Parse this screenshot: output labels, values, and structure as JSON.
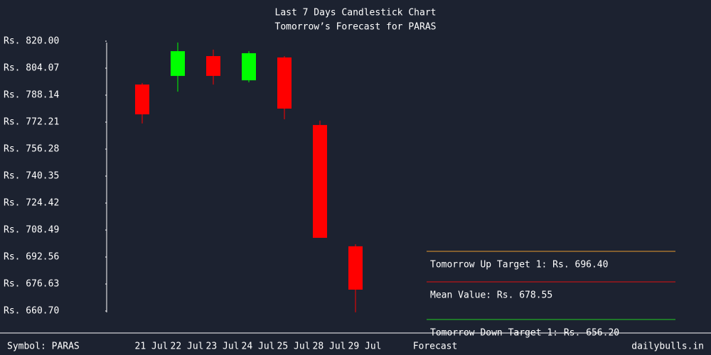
{
  "chart_data": {
    "type": "candlestick",
    "title": "Last 7 Days Candlestick Chart",
    "subtitle": "Tomorrow’s Forecast for PARAS",
    "categories": [
      "21 Jul",
      "22 Jul",
      "23 Jul",
      "24 Jul",
      "25 Jul",
      "28 Jul",
      "29 Jul"
    ],
    "open": [
      794.4,
      799.5,
      811.2,
      796.9,
      810.4,
      770.5,
      698.9
    ],
    "high": [
      795.3,
      819.2,
      815.0,
      814.1,
      811.2,
      773.1,
      700.1
    ],
    "low": [
      771.4,
      790.2,
      794.4,
      795.7,
      773.9,
      703.9,
      659.9
    ],
    "close": [
      776.8,
      814.1,
      799.5,
      812.9,
      780.2,
      703.9,
      673.3
    ],
    "up_color": "#00ff00",
    "down_color": "#ff0000",
    "ylim": [
      660.7,
      820.0
    ],
    "yticks": [
      {
        "value": 820.0,
        "label": "Rs. 820.00"
      },
      {
        "value": 804.07,
        "label": "Rs. 804.07"
      },
      {
        "value": 788.14,
        "label": "Rs. 788.14"
      },
      {
        "value": 772.21,
        "label": "Rs. 772.21"
      },
      {
        "value": 756.28,
        "label": "Rs. 756.28"
      },
      {
        "value": 740.35,
        "label": "Rs. 740.35"
      },
      {
        "value": 724.42,
        "label": "Rs. 724.42"
      },
      {
        "value": 708.49,
        "label": "Rs. 708.49"
      },
      {
        "value": 692.56,
        "label": "Rs. 692.56"
      },
      {
        "value": 676.63,
        "label": "Rs. 676.63"
      },
      {
        "value": 660.7,
        "label": "Rs. 660.70"
      }
    ],
    "forecast_label": "Forecast",
    "forecast": [
      {
        "text": "Tomorrow Up Target 1: Rs. 696.40",
        "color": "#e69a2e"
      },
      {
        "text": "Mean Value: Rs. 678.55",
        "color": "#e01010"
      },
      {
        "text": "Tomorrow Down Target 1: Rs. 656.20",
        "color": "#22cc22"
      }
    ],
    "symbol": "Symbol: PARAS",
    "source": "dailybulls.in"
  }
}
